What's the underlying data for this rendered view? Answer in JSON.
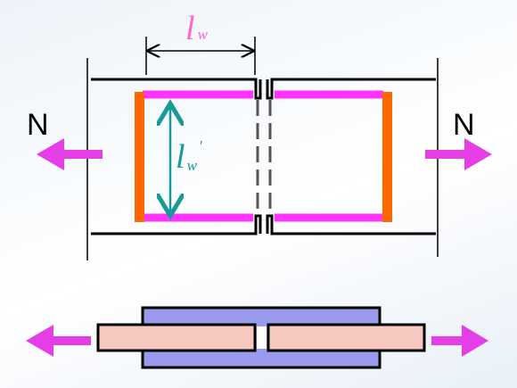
{
  "labels": {
    "force_left": "N",
    "force_right": "N",
    "weld_length": {
      "symbol": "l",
      "subscript": "w"
    },
    "weld_length_effective": {
      "symbol": "l",
      "subscript": "w",
      "prime": "'"
    }
  },
  "colors": {
    "background": "#ffffff",
    "plate_outline": "#000000",
    "weld_line": "#ff33ff",
    "end_weld": "#ff6600",
    "force_arrow": "#e63ee6",
    "dimension_arrow": "#000000",
    "label_lw": "#ff66cc",
    "label_lw_prime": "#1a9999",
    "cover_plate": "#9999ee",
    "main_plate": "#f7c8c0",
    "gap_dash": "#555555"
  }
}
